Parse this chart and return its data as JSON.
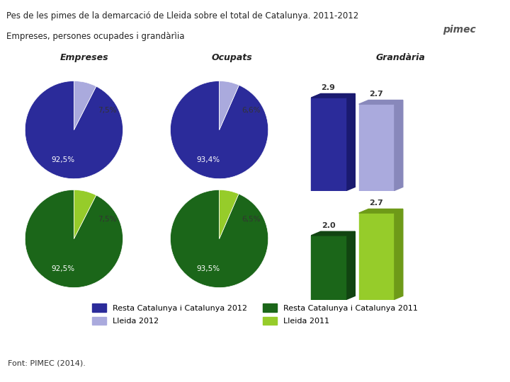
{
  "title_line1": "Pes de les pimes de la demarcació de Lleida sobre el total de Catalunya. 2011-2012",
  "title_line2": "Empreses, persones ocupades i grandàrìia",
  "col_labels": [
    "Empreses",
    "Ocupats",
    "Grandària"
  ],
  "row2012": {
    "empreses": [
      92.5,
      7.5
    ],
    "ocupats": [
      93.4,
      6.6
    ],
    "grandaria": [
      2.9,
      2.7
    ],
    "empreses_pct": [
      "92,5%",
      "7,5%"
    ],
    "ocupats_pct": [
      "93,4%",
      "6,6%"
    ]
  },
  "row2011": {
    "empreses": [
      92.5,
      7.5
    ],
    "ocupats": [
      93.5,
      6.5
    ],
    "grandaria": [
      2.0,
      2.7
    ],
    "empreses_pct": [
      "92,5%",
      "7,5%"
    ],
    "ocupats_pct": [
      "93,5%",
      "6,5%"
    ]
  },
  "color_2012_resta": "#2B2B9A",
  "color_2012_lleida": "#AAAADD",
  "color_2011_resta": "#1B6619",
  "color_2011_lleida": "#96CC2A",
  "color_2012_resta_dark": "#1A1A70",
  "color_2012_lleida_dark": "#8888BB",
  "color_2011_resta_dark": "#114411",
  "color_2011_lleida_dark": "#6E9A18",
  "legend_labels": [
    "Resta Catalunya i Catalunya 2012",
    "Lleida 2012",
    "Resta Catalunya i Catalunya 2011",
    "Lleida 2011"
  ],
  "font_color": "#333333",
  "bg_color": "#FFFFFF",
  "header_bg": "#F0F0EA",
  "footer_text": "Font: PIMEC (2014).",
  "yellow_color": "#D4D400",
  "pie_startangle": 90
}
